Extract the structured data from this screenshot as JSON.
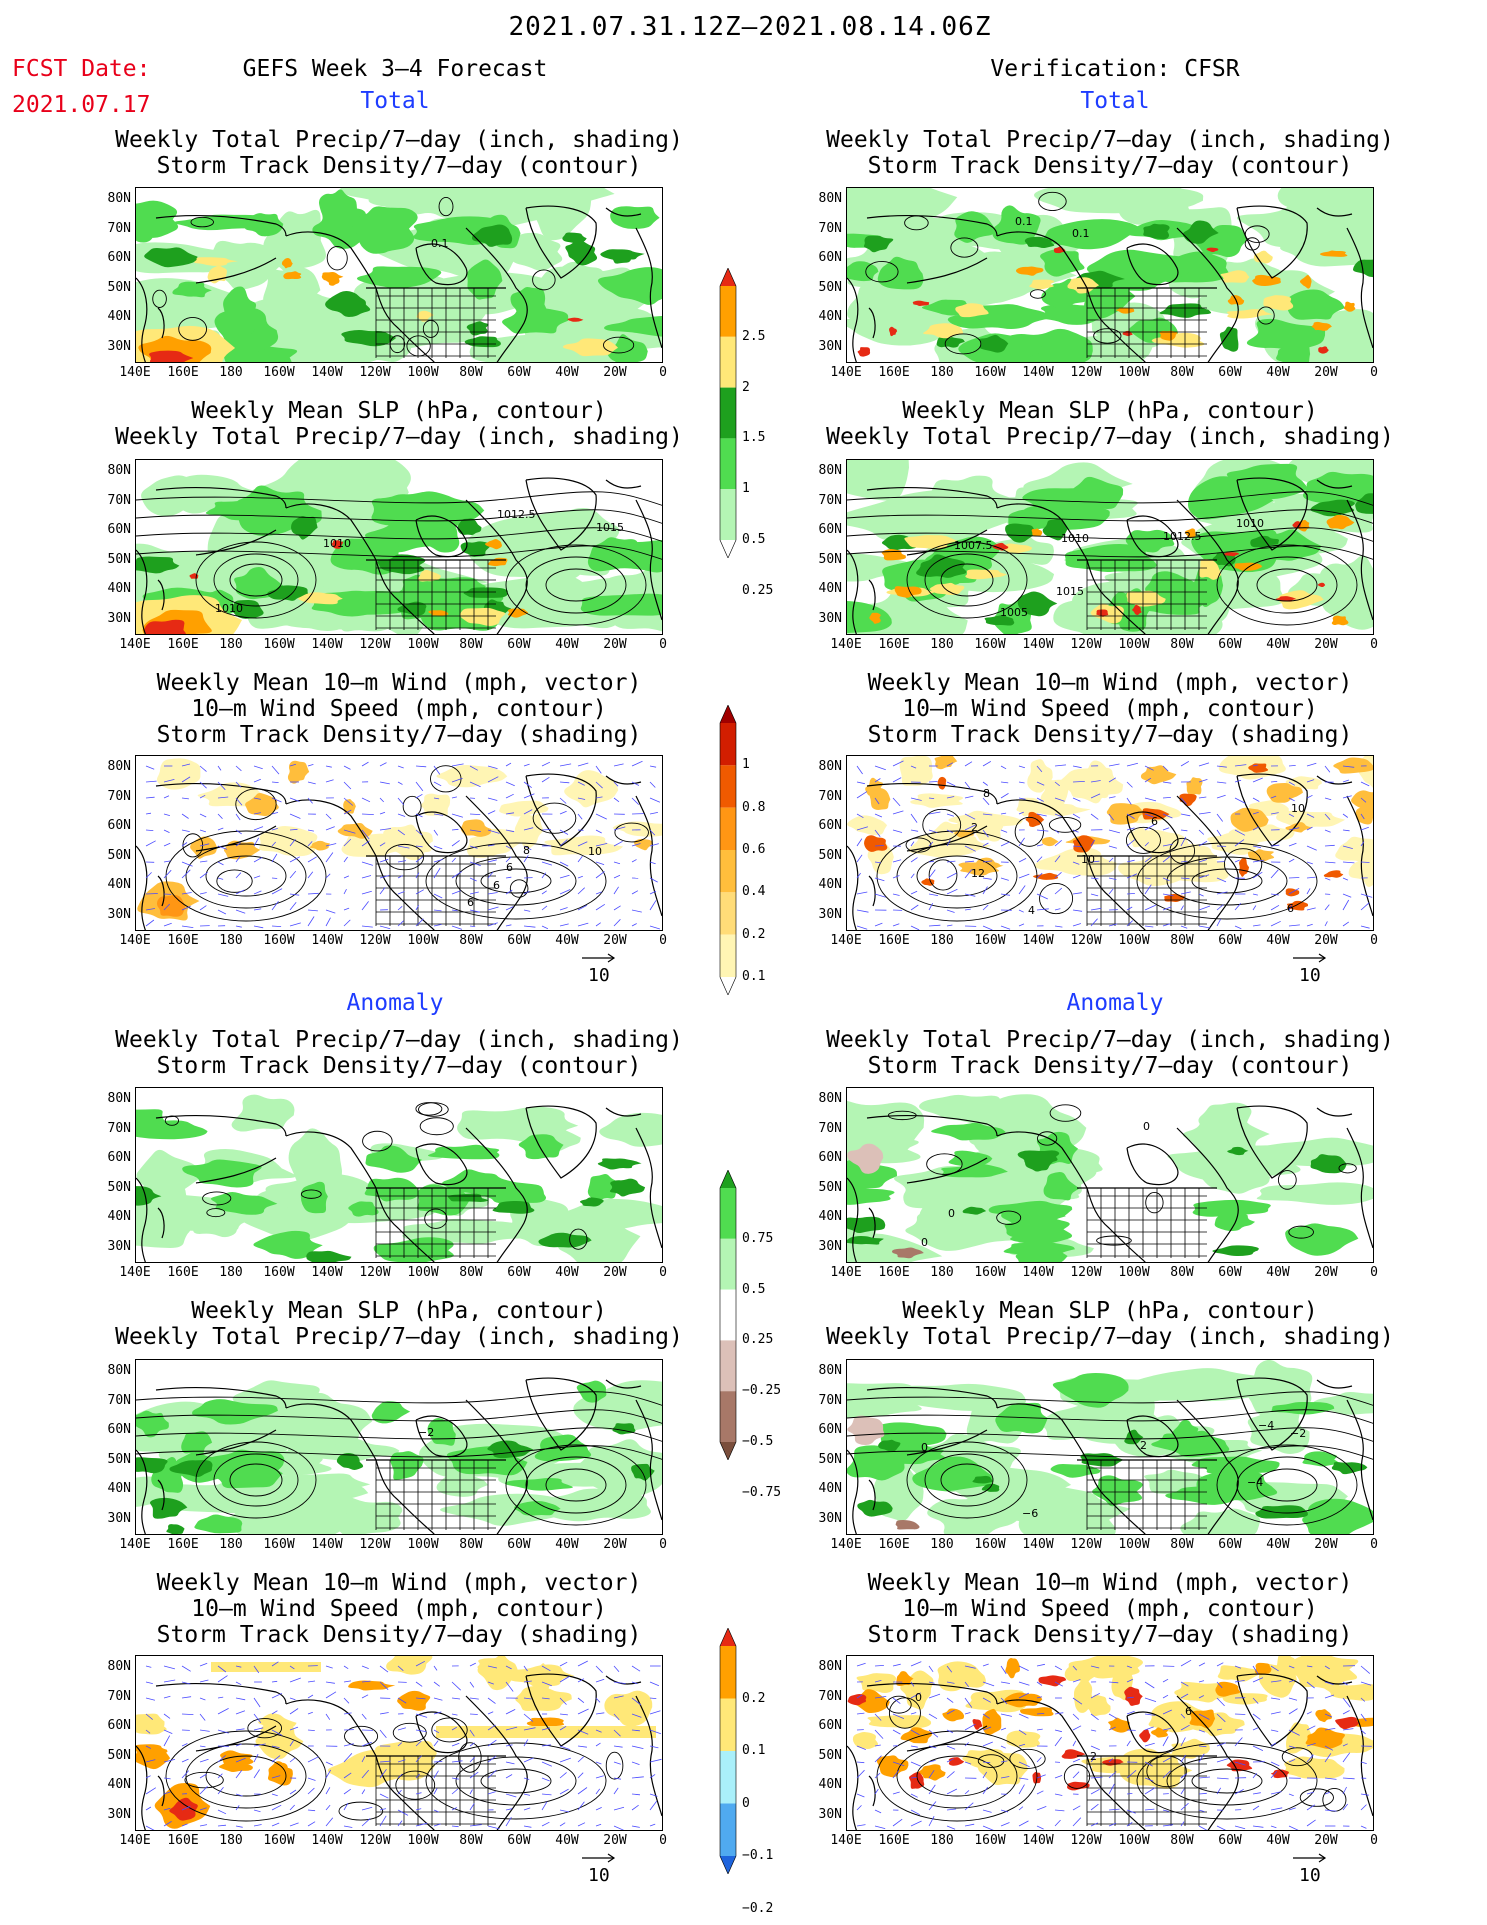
{
  "header": {
    "main_title": "2021.07.31.12Z–2021.08.14.06Z",
    "fcst_label": "FCST Date:",
    "fcst_date": "2021.07.17",
    "left_title": "GEFS Week 3–4 Forecast",
    "right_title": "Verification: CFSR"
  },
  "sections": {
    "total": "Total",
    "anomaly": "Anomaly"
  },
  "panel_titles": {
    "precip_storm": [
      "Weekly Total Precip/7–day (inch, shading)",
      "Storm Track Density/7–day (contour)"
    ],
    "slp_precip": [
      "Weekly Mean SLP (hPa, contour)",
      "Weekly Total Precip/7–day (inch, shading)"
    ],
    "wind_storm": [
      "Weekly Mean 10–m Wind (mph, vector)",
      "10–m Wind Speed (mph, contour)",
      "Storm Track Density/7–day (shading)"
    ]
  },
  "axes": {
    "lat_ticks": [
      "80N",
      "70N",
      "60N",
      "50N",
      "40N",
      "30N"
    ],
    "lon_ticks": [
      "140E",
      "160E",
      "180",
      "160W",
      "140W",
      "120W",
      "100W",
      "80W",
      "60W",
      "40W",
      "20W",
      "0"
    ]
  },
  "vector_scale": "10",
  "colorbars": {
    "precip_total": {
      "labels": [
        "2.5",
        "2",
        "1.5",
        "1",
        "0.5",
        "0.25"
      ],
      "colors": [
        "#ffffff",
        "#b4f5b4",
        "#50dc50",
        "#1ea01e",
        "#ffe878",
        "#ffa000",
        "#e62a14"
      ]
    },
    "storm_total": {
      "labels": [
        "1",
        "0.8",
        "0.6",
        "0.4",
        "0.2",
        "0.1"
      ],
      "colors": [
        "#ffffff",
        "#fff5b4",
        "#ffdc78",
        "#ffbe3c",
        "#ff9614",
        "#f05a00",
        "#d21e00",
        "#a00000"
      ]
    },
    "precip_anom": {
      "labels": [
        "0.75",
        "0.5",
        "0.25",
        "−0.25",
        "−0.5",
        "−0.75"
      ],
      "colors": [
        "#7a4e3c",
        "#a87868",
        "#dcc0b8",
        "#ffffff",
        "#b4f5b4",
        "#50dc50",
        "#1ea01e"
      ]
    },
    "storm_anom": {
      "labels": [
        "0.2",
        "0.1",
        "0",
        "−0.1",
        "−0.2"
      ],
      "colors": [
        "#1e64dc",
        "#50aaf0",
        "#aaf0fa",
        "#ffe878",
        "#ffa000",
        "#e62a14"
      ]
    }
  },
  "contour_labels": {
    "l_precip_total": [
      "0.1"
    ],
    "r_precip_total": [
      "0.1",
      "0.1"
    ],
    "l_slp_total": [
      "1010",
      "1010",
      "1012.5",
      "1015"
    ],
    "r_slp_total": [
      "1010",
      "1010",
      "1005",
      "1007.5",
      "1012.5",
      "1015"
    ],
    "l_wind_total": [
      "8",
      "6",
      "10",
      "6",
      "6"
    ],
    "r_wind_total": [
      "2",
      "4",
      "6",
      "8",
      "10",
      "12",
      "10",
      "6"
    ],
    "r_precip_anom": [
      "0",
      "0",
      "0"
    ],
    "l_slp_anom": [
      "−2"
    ],
    "r_slp_anom": [
      "2",
      "−4",
      "0",
      "−2",
      "−6",
      "−4"
    ],
    "r_wind_anom": [
      "6",
      "2",
      "0"
    ]
  }
}
